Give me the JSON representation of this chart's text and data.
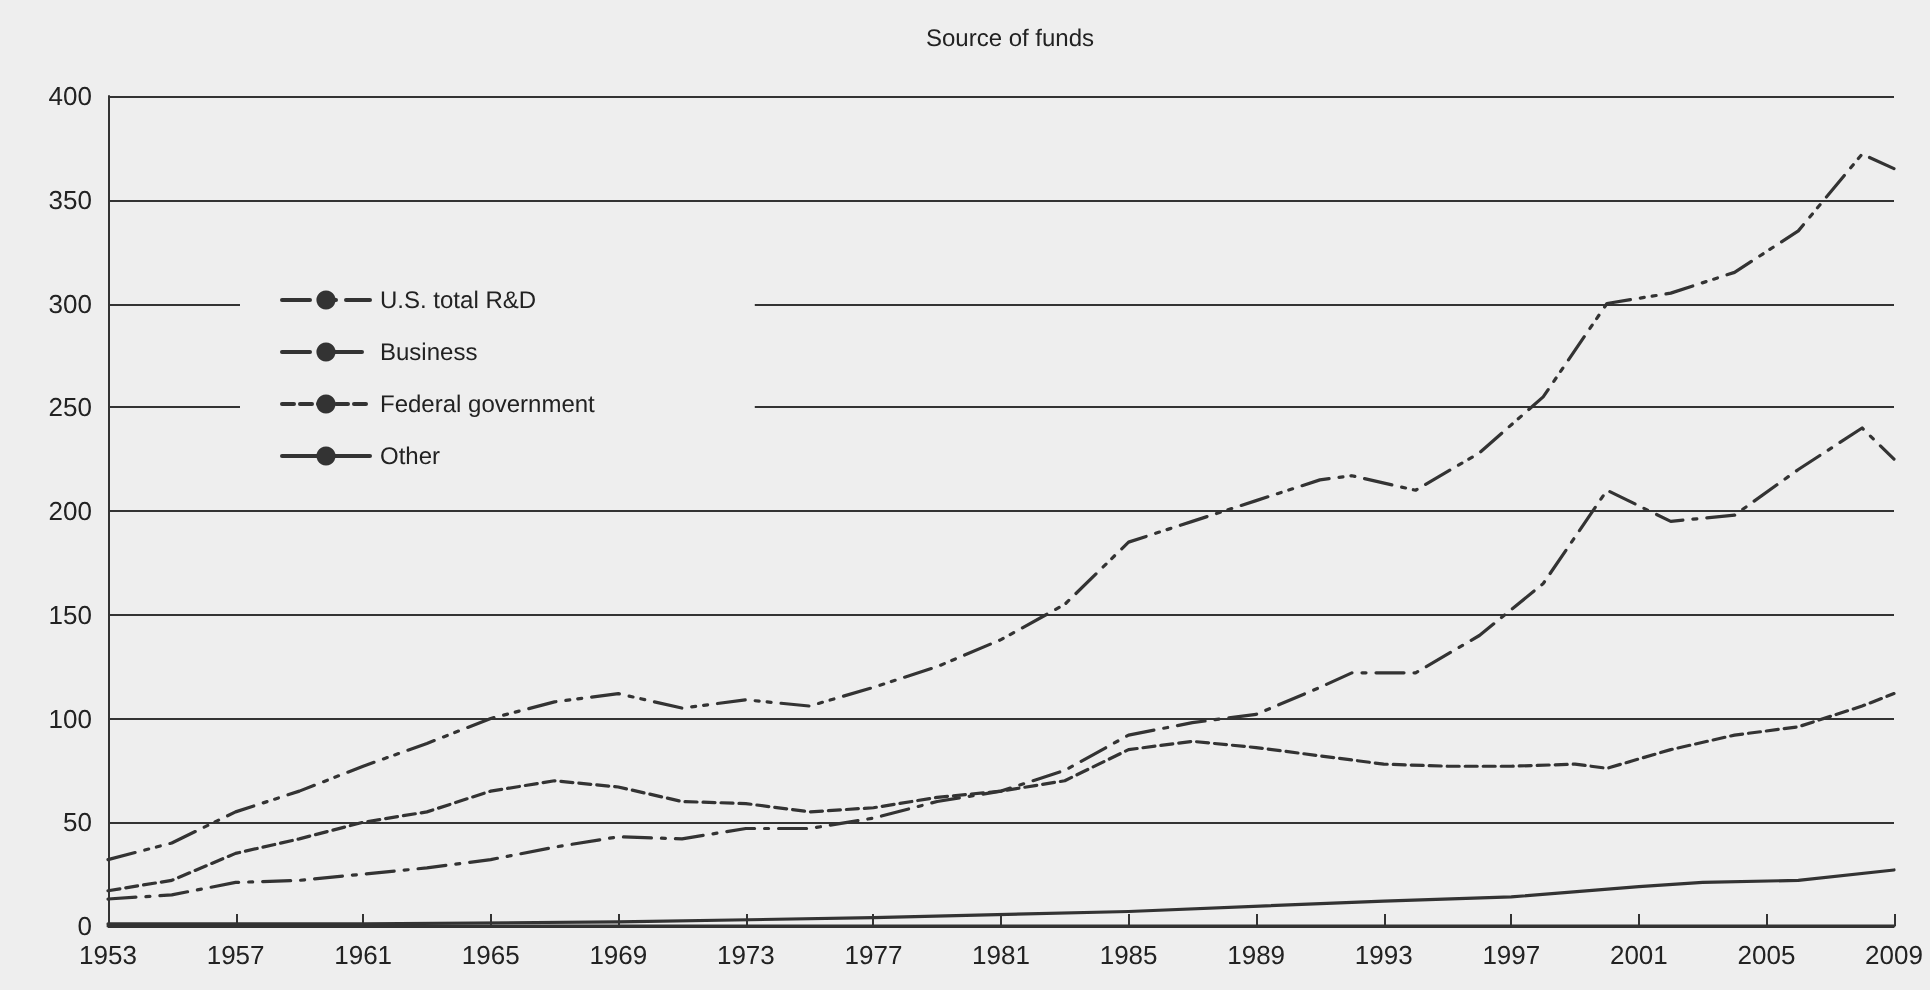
{
  "chart_data": {
    "type": "line",
    "title": "Source of funds",
    "xlim": [
      1953,
      2009
    ],
    "xticks": [
      1953,
      1957,
      1961,
      1965,
      1969,
      1973,
      1977,
      1981,
      1985,
      1989,
      1993,
      1997,
      2001,
      2005,
      2009
    ],
    "ylim": [
      0,
      400
    ],
    "yticks": [
      0,
      50,
      100,
      150,
      200,
      250,
      300,
      350,
      400
    ],
    "grid": "y",
    "legend": "top left",
    "marker": "none",
    "series": [
      {
        "name": "U.S. total R&D",
        "color": "#333333",
        "line_style": "dashdotdot",
        "x": [
          1953,
          1955,
          1957,
          1959,
          1961,
          1963,
          1965,
          1967,
          1969,
          1971,
          1973,
          1975,
          1977,
          1979,
          1981,
          1983,
          1985,
          1987,
          1989,
          1991,
          1992,
          1994,
          1996,
          1998,
          2000,
          2002,
          2004,
          2006,
          2008,
          2009
        ],
        "values": [
          32,
          40,
          55,
          65,
          77,
          88,
          100,
          108,
          112,
          105,
          109,
          106,
          115,
          125,
          138,
          155,
          185,
          195,
          205,
          215,
          217,
          210,
          228,
          255,
          300,
          305,
          315,
          335,
          372,
          365
        ]
      },
      {
        "name": "Business",
        "color": "#333333",
        "line_style": "dashdot",
        "x": [
          1953,
          1955,
          1957,
          1959,
          1961,
          1963,
          1965,
          1967,
          1969,
          1971,
          1973,
          1975,
          1977,
          1979,
          1981,
          1983,
          1985,
          1987,
          1989,
          1991,
          1992,
          1994,
          1996,
          1998,
          2000,
          2002,
          2004,
          2006,
          2008,
          2009
        ],
        "values": [
          13,
          15,
          21,
          22,
          25,
          28,
          32,
          38,
          43,
          42,
          47,
          47,
          52,
          60,
          65,
          75,
          92,
          98,
          102,
          115,
          122,
          122,
          140,
          165,
          210,
          195,
          198,
          220,
          240,
          225
        ]
      },
      {
        "name": "Federal government",
        "color": "#333333",
        "line_style": "dashed",
        "x": [
          1953,
          1955,
          1957,
          1959,
          1961,
          1963,
          1965,
          1967,
          1969,
          1971,
          1973,
          1975,
          1977,
          1979,
          1981,
          1983,
          1985,
          1987,
          1989,
          1991,
          1993,
          1995,
          1997,
          1999,
          2000,
          2002,
          2004,
          2006,
          2008,
          2009
        ],
        "values": [
          17,
          22,
          35,
          42,
          50,
          55,
          65,
          70,
          67,
          60,
          59,
          55,
          57,
          62,
          65,
          70,
          85,
          89,
          86,
          82,
          78,
          77,
          77,
          78,
          76,
          85,
          92,
          96,
          106,
          112
        ]
      },
      {
        "name": "Other",
        "color": "#333333",
        "line_style": "solid",
        "x": [
          1953,
          1961,
          1969,
          1977,
          1985,
          1993,
          1997,
          2001,
          2003,
          2006,
          2009
        ],
        "values": [
          1,
          1,
          2,
          4,
          7,
          12,
          14,
          19,
          21,
          22,
          27
        ]
      }
    ]
  }
}
